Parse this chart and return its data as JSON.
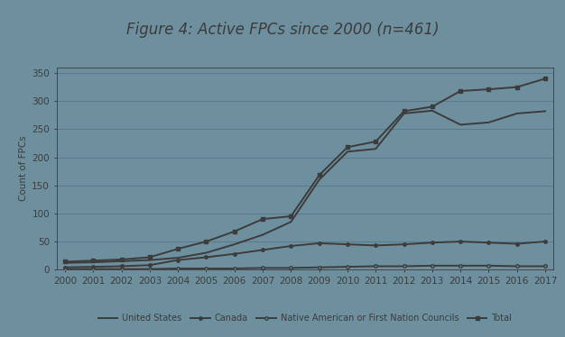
{
  "title": "Figure 4: Active FPCs since 2000 (n=461)",
  "ylabel": "Count of FPCs",
  "years": [
    2000,
    2001,
    2002,
    2003,
    2004,
    2005,
    2006,
    2007,
    2008,
    2009,
    2010,
    2011,
    2012,
    2013,
    2014,
    2015,
    2016,
    2017
  ],
  "united_states": [
    12,
    13,
    15,
    17,
    21,
    30,
    45,
    62,
    85,
    160,
    210,
    215,
    278,
    283,
    258,
    262,
    278,
    282
  ],
  "canada": [
    4,
    5,
    6,
    8,
    17,
    22,
    28,
    35,
    42,
    47,
    45,
    43,
    45,
    48,
    50,
    48,
    46,
    50
  ],
  "native_american": [
    1,
    1,
    1,
    1,
    2,
    2,
    2,
    3,
    3,
    4,
    5,
    6,
    6,
    7,
    7,
    7,
    6,
    6
  ],
  "total": [
    14,
    16,
    18,
    22,
    37,
    50,
    68,
    90,
    95,
    168,
    218,
    228,
    282,
    290,
    318,
    321,
    325,
    340
  ],
  "ylim": [
    0,
    360
  ],
  "yticks": [
    0,
    50,
    100,
    150,
    200,
    250,
    300,
    350
  ],
  "line_color": "#3c3c3c",
  "bg_color": "#6e8f9e",
  "title_bg_color": "#5c7e8d",
  "legend_labels": [
    "United States",
    "Canada",
    "Native American or First Nation Councils",
    "Total"
  ],
  "linewidth": 1.4,
  "title_fontsize": 12,
  "tick_fontsize": 7.5,
  "legend_fontsize": 7,
  "fig_width": 6.26,
  "fig_height": 3.74
}
